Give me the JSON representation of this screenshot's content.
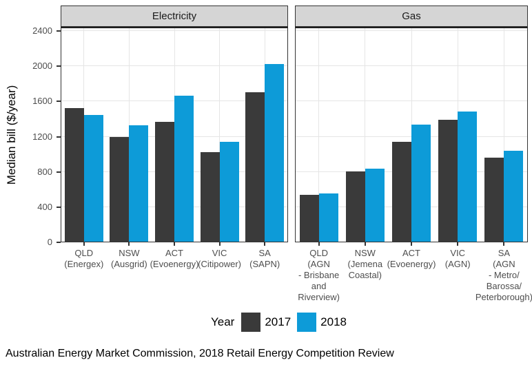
{
  "figure": {
    "caption": "Australian Energy Market Commission, 2018 Retail Energy Competition Review"
  },
  "legend": {
    "title": "Year",
    "entries": [
      {
        "label": "2017",
        "color": "#3a3a3a"
      },
      {
        "label": "2018",
        "color": "#0d9bd8"
      }
    ]
  },
  "chart_data": {
    "type": "bar",
    "title": "",
    "xlabel": "",
    "ylabel": "Median bill ($/year)",
    "ylim": [
      0,
      2400
    ],
    "y_ticks": [
      0,
      400,
      800,
      1200,
      1600,
      2000,
      2400
    ],
    "grid": "major horizontal and vertical gridlines, light gray on white panels",
    "legend_position": "bottom",
    "series_colors": {
      "2017": "#3a3a3a",
      "2018": "#0d9bd8"
    },
    "facets": [
      {
        "label": "Electricity",
        "categories": [
          "QLD\n(Energex)",
          "NSW\n(Ausgrid)",
          "ACT\n(Evoenergy)",
          "VIC\n(Citipower)",
          "SA\n(SAPN)"
        ],
        "series": [
          {
            "name": "2017",
            "values": [
              1520,
              1190,
              1360,
              1020,
              1700
            ]
          },
          {
            "name": "2018",
            "values": [
              1440,
              1320,
              1660,
              1130,
              2020
            ]
          }
        ]
      },
      {
        "label": "Gas",
        "categories": [
          "QLD\n(AGN\n- Brisbane\nand\nRiverview)",
          "NSW\n(Jemena\nCoastal)",
          "ACT\n(Evoenergy)",
          "VIC\n(AGN)",
          "SA\n(AGN\n- Metro/\nBarossa/\nPeterborough)"
        ],
        "series": [
          {
            "name": "2017",
            "values": [
              530,
              800,
              1130,
              1380,
              950
            ]
          },
          {
            "name": "2018",
            "values": [
              550,
              830,
              1330,
              1480,
              1030
            ]
          }
        ]
      }
    ]
  }
}
